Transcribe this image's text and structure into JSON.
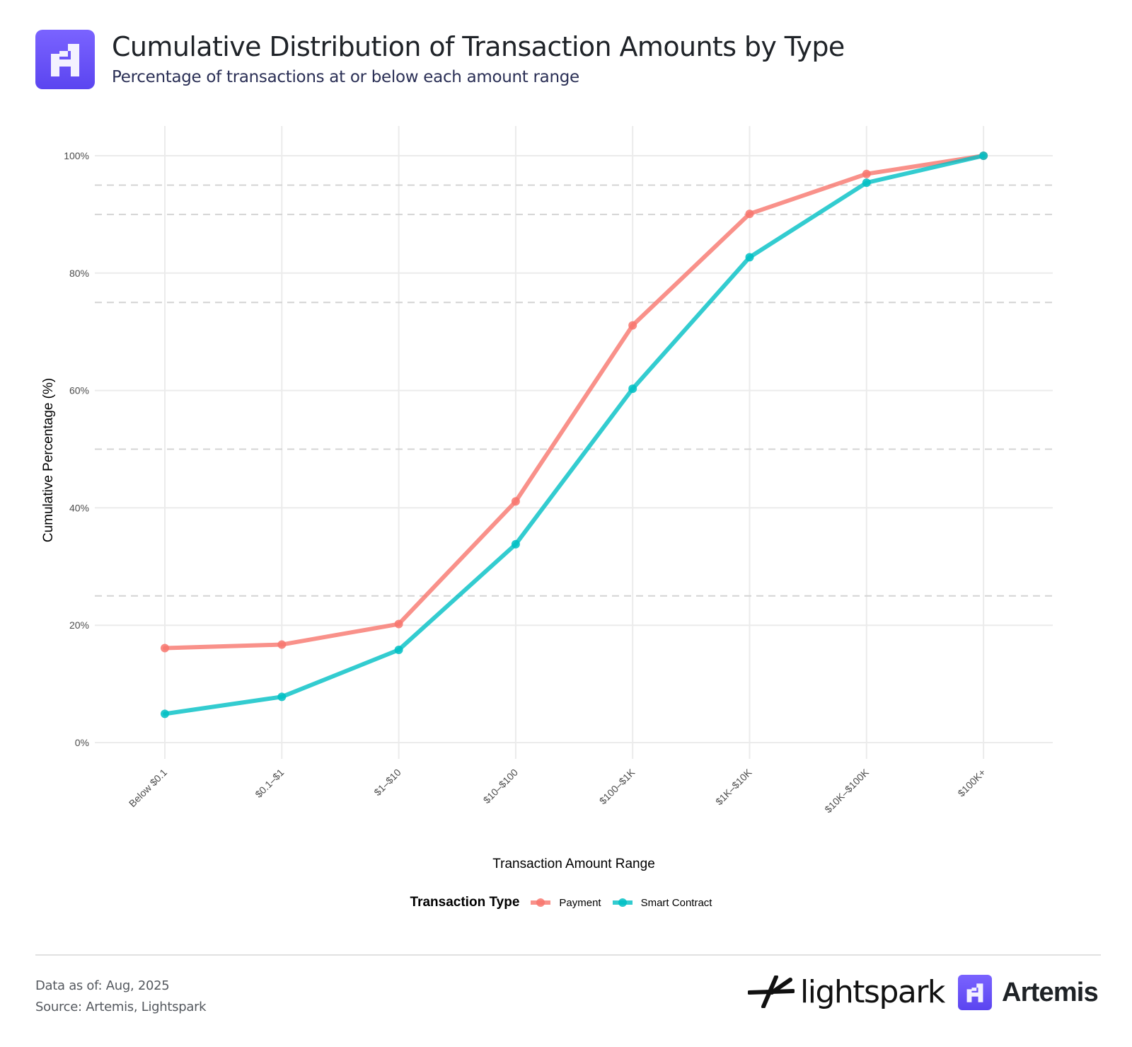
{
  "header": {
    "title": "Cumulative Distribution of Transaction Amounts by Type",
    "subtitle": "Percentage of transactions at or below each amount range",
    "logo_icon": "artemis-logo-icon",
    "brand_color": "#6a52f7"
  },
  "chart_data": {
    "type": "line",
    "title": "Cumulative Distribution of Transaction Amounts by Type",
    "subtitle": "Percentage of transactions at or below each amount range",
    "xlabel": "Transaction Amount Range",
    "ylabel": "Cumulative Percentage (%)",
    "categories": [
      "Below $0.1",
      "$0.1–$1",
      "$1–$10",
      "$10–$100",
      "$100–$1K",
      "$1K–$10K",
      "$10K–$100K",
      "$100K+"
    ],
    "ylim": [
      -5,
      105
    ],
    "yticks": [
      0,
      20,
      40,
      60,
      80,
      100
    ],
    "ytick_labels": [
      "0%",
      "20%",
      "40%",
      "60%",
      "80%",
      "100%"
    ],
    "reference_lines": [
      25,
      50,
      75,
      90,
      95
    ],
    "grid": true,
    "legend": {
      "title": "Transaction Type",
      "position": "bottom"
    },
    "series": [
      {
        "name": "Payment",
        "color": "#f8766d",
        "values": [
          16.1,
          16.7,
          20.2,
          41.1,
          71.1,
          90.1,
          96.9,
          100.0
        ]
      },
      {
        "name": "Smart Contract",
        "color": "#00bfc4",
        "values": [
          4.9,
          7.8,
          15.8,
          33.8,
          60.3,
          82.7,
          95.4,
          100.0
        ]
      }
    ]
  },
  "footer": {
    "data_as_of": "Data as of: Aug, 2025",
    "source": "Source: Artemis, Lightspark",
    "brands": [
      {
        "name": "lightspark",
        "icon": "lightspark-logo-icon"
      },
      {
        "name": "Artemis",
        "icon": "artemis-logo-icon"
      }
    ]
  }
}
